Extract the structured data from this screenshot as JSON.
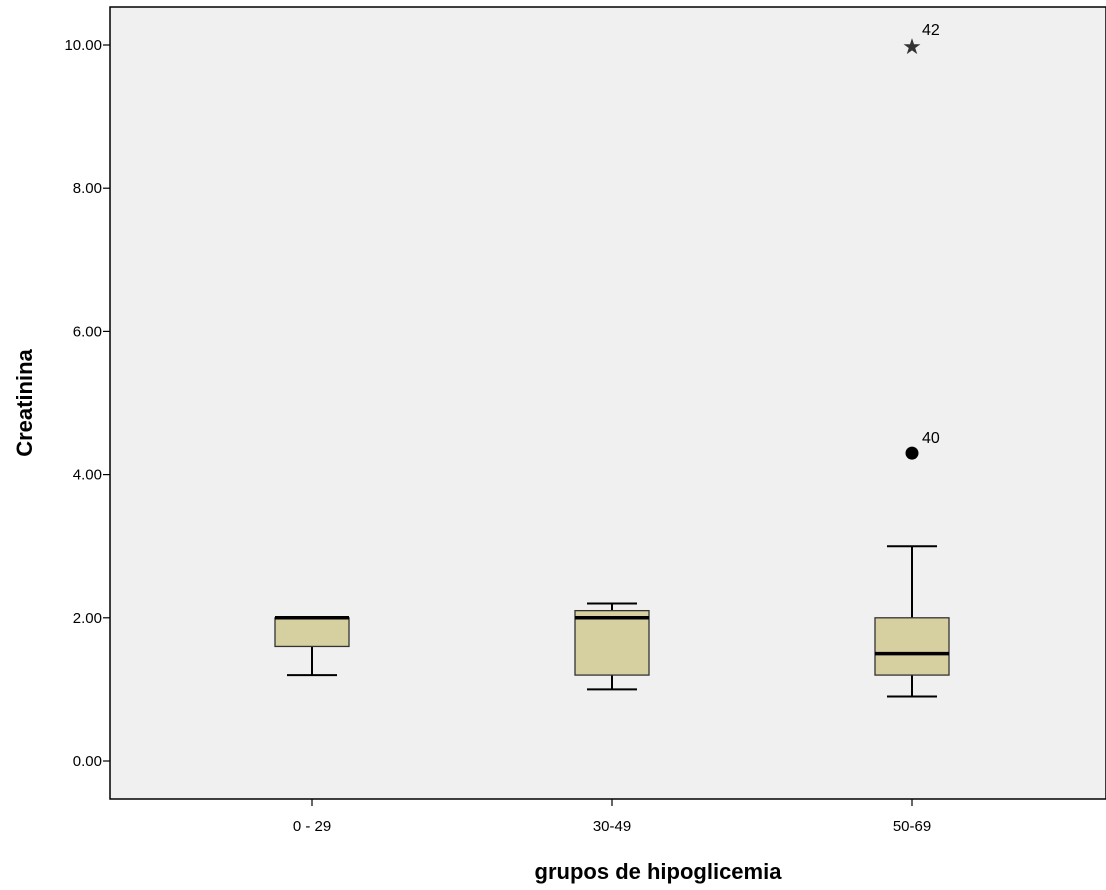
{
  "chart_data": {
    "type": "boxplot",
    "xlabel": "grupos de hipoglicemia",
    "ylabel": "Creatinina",
    "ylim": [
      -0.5,
      10.5
    ],
    "yticks": [
      0,
      2,
      4,
      6,
      8,
      10
    ],
    "ytick_labels": [
      "0.00",
      "2.00",
      "4.00",
      "6.00",
      "8.00",
      "10.00"
    ],
    "categories": [
      "0 - 29",
      "30-49",
      "50-69"
    ],
    "boxes": [
      {
        "category": "0 - 29",
        "min": 1.2,
        "q1": 1.6,
        "median": 2.0,
        "q3": 2.0,
        "max": 2.0,
        "outliers": []
      },
      {
        "category": "30-49",
        "min": 1.0,
        "q1": 1.2,
        "median": 2.0,
        "q3": 2.1,
        "max": 2.2,
        "outliers": []
      },
      {
        "category": "50-69",
        "min": 0.9,
        "q1": 1.2,
        "median": 1.5,
        "q3": 2.0,
        "max": 3.0,
        "outliers": [
          {
            "value": 4.3,
            "label": "40",
            "marker": "circle"
          },
          {
            "value": 10.0,
            "label": "42",
            "marker": "star"
          }
        ]
      }
    ],
    "grid": false,
    "legend": "none",
    "colors": {
      "plot_background": "#f0f0f0",
      "box_fill": "#d6cf9f",
      "stroke": "#000000"
    }
  }
}
